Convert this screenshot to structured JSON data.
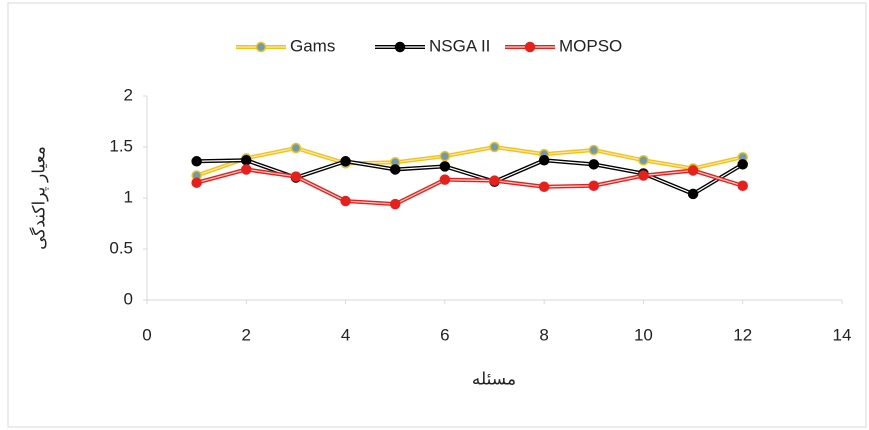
{
  "chart_data": {
    "type": "line",
    "x_label": "مسئله",
    "y_label": "معیار پراکندگی",
    "x": [
      1,
      2,
      3,
      4,
      5,
      6,
      7,
      8,
      9,
      10,
      11,
      12
    ],
    "series": [
      {
        "name": "Gams",
        "color": "#f2c21b",
        "inner": "#ffe9a8",
        "marker": "#6d9bb5",
        "values": [
          1.22,
          1.39,
          1.49,
          1.34,
          1.35,
          1.41,
          1.5,
          1.43,
          1.47,
          1.37,
          1.29,
          1.4
        ]
      },
      {
        "name": "NSGA II",
        "color": "#000000",
        "inner": "#ffffff",
        "marker": "#000000",
        "values": [
          1.36,
          1.37,
          1.2,
          1.36,
          1.28,
          1.31,
          1.16,
          1.37,
          1.33,
          1.24,
          1.04,
          1.33
        ]
      },
      {
        "name": "MOPSO",
        "color": "#e8201c",
        "inner": "#ffd0cc",
        "marker": "#e8201c",
        "values": [
          1.15,
          1.28,
          1.21,
          0.97,
          0.94,
          1.18,
          1.17,
          1.11,
          1.12,
          1.22,
          1.27,
          1.12
        ]
      }
    ],
    "xlim": [
      0,
      14
    ],
    "xticks": [
      0,
      2,
      4,
      6,
      8,
      10,
      12,
      14
    ],
    "ylim": [
      0,
      2
    ],
    "yticks": [
      0,
      0.5,
      1,
      1.5,
      2
    ],
    "legend": "top"
  }
}
